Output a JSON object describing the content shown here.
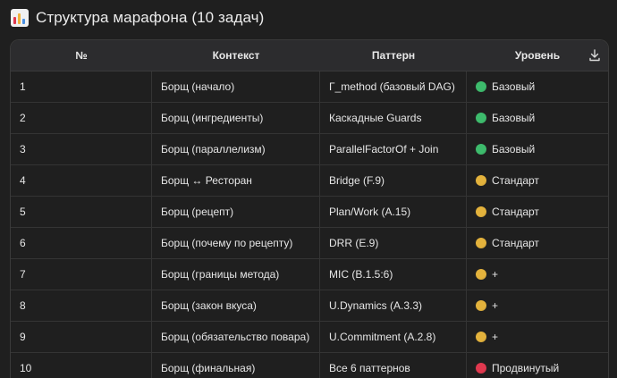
{
  "title": "Структура марафона (10 задач)",
  "icon": "bar-chart-icon",
  "headers": [
    "№",
    "Контекст",
    "Паттерн",
    "Уровень"
  ],
  "colors": {
    "green": "#3dbb6c",
    "yellow": "#e3b23c",
    "red": "#e0384e"
  },
  "rows": [
    {
      "num": "1",
      "context": "Борщ (начало)",
      "pattern": "Γ_method (базовый DAG)",
      "level": "Базовый",
      "level_color": "green"
    },
    {
      "num": "2",
      "context": "Борщ (ингредиенты)",
      "pattern": "Каскадные Guards",
      "level": "Базовый",
      "level_color": "green"
    },
    {
      "num": "3",
      "context": "Борщ (параллелизм)",
      "pattern": "ParallelFactorOf + Join",
      "level": "Базовый",
      "level_color": "green"
    },
    {
      "num": "4",
      "context": "Борщ ↔ Ресторан",
      "pattern": "Bridge (F.9)",
      "level": "Стандарт",
      "level_color": "yellow"
    },
    {
      "num": "5",
      "context": "Борщ (рецепт)",
      "pattern": "Plan/Work (A.15)",
      "level": "Стандарт",
      "level_color": "yellow"
    },
    {
      "num": "6",
      "context": "Борщ (почему по рецепту)",
      "pattern": "DRR (E.9)",
      "level": "Стандарт",
      "level_color": "yellow"
    },
    {
      "num": "7",
      "context": "Борщ (границы метода)",
      "pattern": "MIC (B.1.5:6)",
      "level": "+",
      "level_color": "yellow"
    },
    {
      "num": "8",
      "context": "Борщ (закон вкуса)",
      "pattern": "U.Dynamics (A.3.3)",
      "level": "+",
      "level_color": "yellow"
    },
    {
      "num": "9",
      "context": "Борщ (обязательство повара)",
      "pattern": "U.Commitment (A.2.8)",
      "level": "+",
      "level_color": "yellow"
    },
    {
      "num": "10",
      "context": "Борщ (финальная)",
      "pattern": "Все 6 паттернов",
      "level": "Продвинутый",
      "level_color": "red"
    }
  ]
}
